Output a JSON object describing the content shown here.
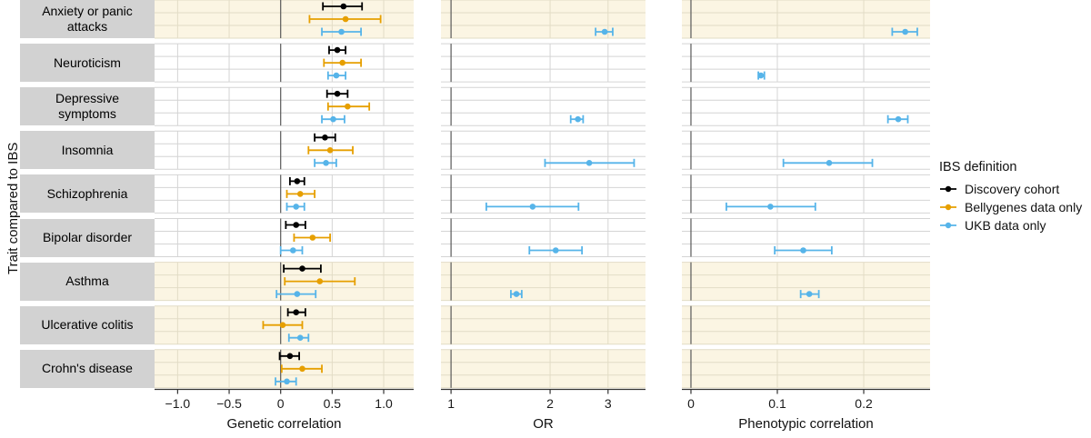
{
  "chart_data": {
    "type": "forest",
    "ylabel": "Trait compared to IBS",
    "legend": {
      "title": "IBS definition",
      "items": [
        {
          "key": "discovery",
          "label": "Discovery cohort",
          "color": "#000000"
        },
        {
          "key": "bellygenes",
          "label": "Bellygenes data only",
          "color": "#E69F00"
        },
        {
          "key": "ukb",
          "label": "UKB data only",
          "color": "#56B4E9"
        }
      ]
    },
    "colors": {
      "highlight_bg": "#FBF5E3",
      "highlight_grid": "#E2DCC6",
      "grid": "#D4D4D4",
      "zero_line": "#595959",
      "axis": "#333333",
      "strip_bg": "#D2D2D2"
    },
    "panels": [
      {
        "key": "genetic",
        "xlabel": "Genetic correlation",
        "scale": "linear",
        "zero_line": 0,
        "ticks": [
          {
            "v": -1.0,
            "label": "−1.0"
          },
          {
            "v": -0.5,
            "label": "−0.5"
          },
          {
            "v": 0,
            "label": "0"
          },
          {
            "v": 0.5,
            "label": "0.5"
          },
          {
            "v": 1.0,
            "label": "1.0"
          }
        ],
        "xlim": [
          -1.22,
          1.29
        ]
      },
      {
        "key": "or",
        "xlabel": "OR",
        "scale": "log",
        "zero_line": 1,
        "ticks": [
          {
            "v": 1,
            "label": "1"
          },
          {
            "v": 2,
            "label": "2"
          },
          {
            "v": 3,
            "label": "3"
          }
        ],
        "xlim": [
          0.93,
          3.9
        ]
      },
      {
        "key": "pheno",
        "xlabel": "Phenotypic correlation",
        "scale": "linear",
        "zero_line": 0,
        "ticks": [
          {
            "v": 0,
            "label": "0"
          },
          {
            "v": 0.1,
            "label": "0.1"
          },
          {
            "v": 0.2,
            "label": "0.2"
          }
        ],
        "xlim": [
          -0.01,
          0.28
        ]
      }
    ],
    "traits": [
      {
        "label": "Anxiety or panic attacks",
        "highlight": true,
        "genetic": {
          "discovery": [
            0.61,
            0.41,
            0.79
          ],
          "bellygenes": [
            0.63,
            0.28,
            0.97
          ],
          "ukb": [
            0.59,
            0.4,
            0.78
          ]
        },
        "or": {
          "ukb": [
            2.93,
            2.75,
            3.1
          ]
        },
        "pheno": {
          "ukb": [
            0.248,
            0.233,
            0.262
          ]
        }
      },
      {
        "label": "Neuroticism",
        "highlight": false,
        "genetic": {
          "discovery": [
            0.55,
            0.47,
            0.63
          ],
          "bellygenes": [
            0.6,
            0.42,
            0.78
          ],
          "ukb": [
            0.54,
            0.46,
            0.63
          ]
        },
        "or": {},
        "pheno": {
          "ukb": [
            0.081,
            0.078,
            0.085
          ]
        }
      },
      {
        "label": "Depressive symptoms",
        "highlight": false,
        "genetic": {
          "discovery": [
            0.55,
            0.45,
            0.65
          ],
          "bellygenes": [
            0.65,
            0.46,
            0.86
          ],
          "ukb": [
            0.51,
            0.4,
            0.62
          ]
        },
        "or": {
          "ukb": [
            2.43,
            2.31,
            2.52
          ]
        },
        "pheno": {
          "ukb": [
            0.24,
            0.228,
            0.251
          ]
        }
      },
      {
        "label": "Insomnia",
        "highlight": false,
        "genetic": {
          "discovery": [
            0.43,
            0.33,
            0.53
          ],
          "bellygenes": [
            0.48,
            0.27,
            0.7
          ],
          "ukb": [
            0.44,
            0.33,
            0.54
          ]
        },
        "or": {
          "ukb": [
            2.63,
            1.93,
            3.6
          ]
        },
        "pheno": {
          "ukb": [
            0.16,
            0.107,
            0.21
          ]
        }
      },
      {
        "label": "Schizophrenia",
        "highlight": false,
        "genetic": {
          "discovery": [
            0.16,
            0.09,
            0.23
          ],
          "bellygenes": [
            0.19,
            0.06,
            0.33
          ],
          "ukb": [
            0.15,
            0.06,
            0.23
          ]
        },
        "or": {
          "ukb": [
            1.77,
            1.28,
            2.44
          ]
        },
        "pheno": {
          "ukb": [
            0.092,
            0.041,
            0.144
          ]
        }
      },
      {
        "label": "Bipolar disorder",
        "highlight": false,
        "genetic": {
          "discovery": [
            0.15,
            0.05,
            0.24
          ],
          "bellygenes": [
            0.31,
            0.13,
            0.48
          ],
          "ukb": [
            0.12,
            0.0,
            0.21
          ]
        },
        "or": {
          "ukb": [
            2.08,
            1.73,
            2.5
          ]
        },
        "pheno": {
          "ukb": [
            0.13,
            0.097,
            0.163
          ]
        }
      },
      {
        "label": "Asthma",
        "highlight": true,
        "genetic": {
          "discovery": [
            0.21,
            0.03,
            0.39
          ],
          "bellygenes": [
            0.38,
            0.04,
            0.72
          ],
          "ukb": [
            0.16,
            -0.04,
            0.34
          ]
        },
        "or": {
          "ukb": [
            1.58,
            1.52,
            1.64
          ]
        },
        "pheno": {
          "ukb": [
            0.137,
            0.127,
            0.148
          ]
        }
      },
      {
        "label": "Ulcerative colitis",
        "highlight": true,
        "genetic": {
          "discovery": [
            0.15,
            0.07,
            0.24
          ],
          "bellygenes": [
            0.02,
            -0.17,
            0.21
          ],
          "ukb": [
            0.19,
            0.08,
            0.27
          ]
        },
        "or": {},
        "pheno": {}
      },
      {
        "label": "Crohn's disease",
        "highlight": true,
        "genetic": {
          "discovery": [
            0.09,
            -0.01,
            0.18
          ],
          "bellygenes": [
            0.21,
            0.01,
            0.4
          ],
          "ukb": [
            0.06,
            -0.05,
            0.15
          ]
        },
        "or": {},
        "pheno": {}
      }
    ]
  }
}
